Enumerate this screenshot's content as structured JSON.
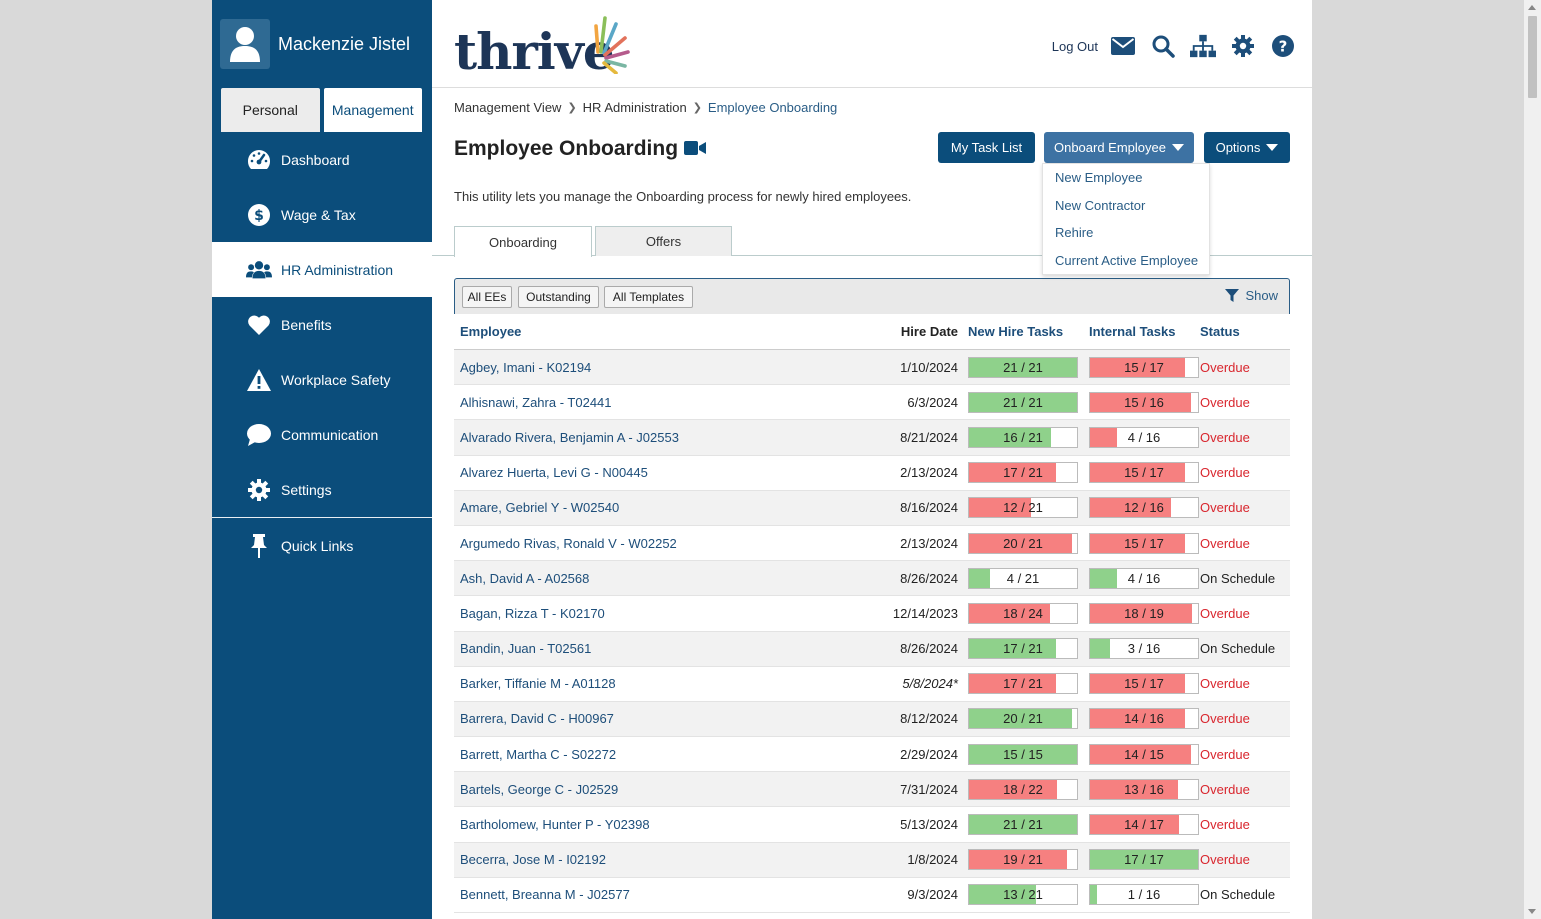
{
  "user": {
    "name": "Mackenzie Jistel"
  },
  "view_tabs": [
    {
      "label": "Personal",
      "active": false
    },
    {
      "label": "Management",
      "active": true
    }
  ],
  "nav": [
    {
      "label": "Dashboard",
      "icon": "dashboard-icon",
      "active": false
    },
    {
      "label": "Wage & Tax",
      "icon": "dollar-icon",
      "active": false
    },
    {
      "label": "HR Administration",
      "icon": "users-icon",
      "active": true
    },
    {
      "label": "Benefits",
      "icon": "heart-icon",
      "active": false
    },
    {
      "label": "Workplace Safety",
      "icon": "warning-icon",
      "active": false
    },
    {
      "label": "Communication",
      "icon": "chat-icon",
      "active": false
    },
    {
      "label": "Settings",
      "icon": "gear-icon",
      "active": false
    }
  ],
  "quick_links": {
    "label": "Quick Links",
    "icon": "pin-icon"
  },
  "header": {
    "logo_text": "thrive",
    "logout": "Log Out",
    "icons": [
      "mail-icon",
      "search-icon",
      "org-chart-icon",
      "gear-icon",
      "help-icon"
    ]
  },
  "breadcrumb": [
    "Management View",
    "HR Administration",
    "Employee Onboarding"
  ],
  "page": {
    "title": "Employee Onboarding",
    "intro": "This utility lets you manage the Onboarding process for newly hired employees."
  },
  "buttons": {
    "task_list": "My Task List",
    "onboard": "Onboard Employee",
    "options": "Options"
  },
  "onboard_menu": [
    "New Employee",
    "New Contractor",
    "Rehire",
    "Current Active Employee"
  ],
  "tabs": [
    {
      "label": "Onboarding",
      "active": true
    },
    {
      "label": "Offers",
      "active": false
    }
  ],
  "filters": [
    "All EEs",
    "Outstanding",
    "All Templates"
  ],
  "show_label": "Show",
  "columns": [
    "Employee",
    "Hire Date",
    "New Hire Tasks",
    "Internal Tasks",
    "Status"
  ],
  "colors": {
    "sidebar": "#0b4d7b",
    "done": "#8fd18b",
    "late": "#f68080",
    "overdue": "#d9262e"
  },
  "rows": [
    {
      "employee": "Agbey, Imani - K02194",
      "hire_date": "1/10/2024",
      "nh_done": 21,
      "nh_total": 21,
      "nh_color": "green",
      "int_done": 15,
      "int_total": 17,
      "int_color": "red",
      "status": "Overdue"
    },
    {
      "employee": "Alhisnawi, Zahra - T02441",
      "hire_date": "6/3/2024",
      "nh_done": 21,
      "nh_total": 21,
      "nh_color": "green",
      "int_done": 15,
      "int_total": 16,
      "int_color": "red",
      "status": "Overdue"
    },
    {
      "employee": "Alvarado Rivera, Benjamin A - J02553",
      "hire_date": "8/21/2024",
      "nh_done": 16,
      "nh_total": 21,
      "nh_color": "green",
      "int_done": 4,
      "int_total": 16,
      "int_color": "red",
      "status": "Overdue"
    },
    {
      "employee": "Alvarez Huerta, Levi G - N00445",
      "hire_date": "2/13/2024",
      "nh_done": 17,
      "nh_total": 21,
      "nh_color": "red",
      "int_done": 15,
      "int_total": 17,
      "int_color": "red",
      "status": "Overdue"
    },
    {
      "employee": "Amare, Gebriel Y - W02540",
      "hire_date": "8/16/2024",
      "nh_done": 12,
      "nh_total": 21,
      "nh_color": "red",
      "int_done": 12,
      "int_total": 16,
      "int_color": "red",
      "status": "Overdue"
    },
    {
      "employee": "Argumedo Rivas, Ronald V - W02252",
      "hire_date": "2/13/2024",
      "nh_done": 20,
      "nh_total": 21,
      "nh_color": "red",
      "int_done": 15,
      "int_total": 17,
      "int_color": "red",
      "status": "Overdue"
    },
    {
      "employee": "Ash, David A - A02568",
      "hire_date": "8/26/2024",
      "nh_done": 4,
      "nh_total": 21,
      "nh_color": "green",
      "int_done": 4,
      "int_total": 16,
      "int_color": "green",
      "status": "On Schedule"
    },
    {
      "employee": "Bagan, Rizza T - K02170",
      "hire_date": "12/14/2023",
      "nh_done": 18,
      "nh_total": 24,
      "nh_color": "red",
      "int_done": 18,
      "int_total": 19,
      "int_color": "red",
      "status": "Overdue"
    },
    {
      "employee": "Bandin, Juan - T02561",
      "hire_date": "8/26/2024",
      "nh_done": 17,
      "nh_total": 21,
      "nh_color": "green",
      "int_done": 3,
      "int_total": 16,
      "int_color": "green",
      "status": "On Schedule"
    },
    {
      "employee": "Barker, Tiffanie M - A01128",
      "hire_date": "5/8/2024*",
      "italic": true,
      "nh_done": 17,
      "nh_total": 21,
      "nh_color": "red",
      "int_done": 15,
      "int_total": 17,
      "int_color": "red",
      "status": "Overdue"
    },
    {
      "employee": "Barrera, David C - H00967",
      "hire_date": "8/12/2024",
      "nh_done": 20,
      "nh_total": 21,
      "nh_color": "green",
      "int_done": 14,
      "int_total": 16,
      "int_color": "red",
      "status": "Overdue"
    },
    {
      "employee": "Barrett, Martha C - S02272",
      "hire_date": "2/29/2024",
      "nh_done": 15,
      "nh_total": 15,
      "nh_color": "green",
      "int_done": 14,
      "int_total": 15,
      "int_color": "red",
      "status": "Overdue"
    },
    {
      "employee": "Bartels, George C - J02529",
      "hire_date": "7/31/2024",
      "nh_done": 18,
      "nh_total": 22,
      "nh_color": "red",
      "int_done": 13,
      "int_total": 16,
      "int_color": "red",
      "status": "Overdue"
    },
    {
      "employee": "Bartholomew, Hunter P - Y02398",
      "hire_date": "5/13/2024",
      "nh_done": 21,
      "nh_total": 21,
      "nh_color": "green",
      "int_done": 14,
      "int_total": 17,
      "int_color": "red",
      "status": "Overdue"
    },
    {
      "employee": "Becerra, Jose M - I02192",
      "hire_date": "1/8/2024",
      "nh_done": 19,
      "nh_total": 21,
      "nh_color": "red",
      "int_done": 17,
      "int_total": 17,
      "int_color": "green",
      "status": "Overdue"
    },
    {
      "employee": "Bennett, Breanna M - J02577",
      "hire_date": "9/3/2024",
      "nh_done": 13,
      "nh_total": 21,
      "nh_color": "green",
      "int_done": 1,
      "int_total": 16,
      "int_color": "green",
      "status": "On Schedule"
    }
  ]
}
